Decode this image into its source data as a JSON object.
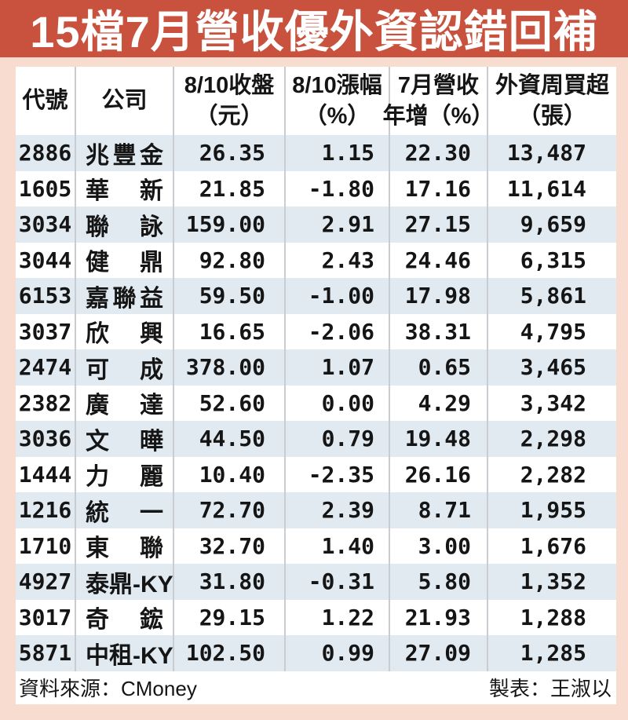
{
  "title": {
    "text": "15檔7月營收優外資認錯回補"
  },
  "colors": {
    "background": "#f8dcd0",
    "title_bar": "#c8523e",
    "title_text": "#ffffff",
    "row_stripe": "#e1eaf0",
    "divider": "#c9cdd1",
    "text": "#151515"
  },
  "table": {
    "headers": [
      {
        "name": "code",
        "line1": "代號",
        "line2": ""
      },
      {
        "name": "company",
        "line1": "公司",
        "line2": ""
      },
      {
        "name": "close",
        "line1": "8/10收盤",
        "line2": "（元）"
      },
      {
        "name": "change",
        "line1": "8/10漲幅",
        "line2": "（%）"
      },
      {
        "name": "revenue",
        "line1": "7月營收",
        "line2": "年增（%）"
      },
      {
        "name": "buy",
        "line1": "外資周買超",
        "line2": "（張）"
      }
    ],
    "rows": [
      {
        "code": "2886",
        "name": "兆豐金",
        "close": "26.35",
        "change": "1.15",
        "revenue": "22.30",
        "buy": "13,487"
      },
      {
        "code": "1605",
        "name": "華新",
        "close": "21.85",
        "change": "-1.80",
        "revenue": "17.16",
        "buy": "11,614"
      },
      {
        "code": "3034",
        "name": "聯詠",
        "close": "159.00",
        "change": "2.91",
        "revenue": "27.15",
        "buy": "9,659"
      },
      {
        "code": "3044",
        "name": "健鼎",
        "close": "92.80",
        "change": "2.43",
        "revenue": "24.46",
        "buy": "6,315"
      },
      {
        "code": "6153",
        "name": "嘉聯益",
        "close": "59.50",
        "change": "-1.00",
        "revenue": "17.98",
        "buy": "5,861"
      },
      {
        "code": "3037",
        "name": "欣興",
        "close": "16.65",
        "change": "-2.06",
        "revenue": "38.31",
        "buy": "4,795"
      },
      {
        "code": "2474",
        "name": "可成",
        "close": "378.00",
        "change": "1.07",
        "revenue": "0.65",
        "buy": "3,465"
      },
      {
        "code": "2382",
        "name": "廣達",
        "close": "52.60",
        "change": "0.00",
        "revenue": "4.29",
        "buy": "3,342"
      },
      {
        "code": "3036",
        "name": "文曄",
        "close": "44.50",
        "change": "0.79",
        "revenue": "19.48",
        "buy": "2,298"
      },
      {
        "code": "1444",
        "name": "力麗",
        "close": "10.40",
        "change": "-2.35",
        "revenue": "26.16",
        "buy": "2,282"
      },
      {
        "code": "1216",
        "name": "統一",
        "close": "72.70",
        "change": "2.39",
        "revenue": "8.71",
        "buy": "1,955"
      },
      {
        "code": "1710",
        "name": "東聯",
        "close": "32.70",
        "change": "1.40",
        "revenue": "3.00",
        "buy": "1,676"
      },
      {
        "code": "4927",
        "name": "泰鼎-KY",
        "close": "31.80",
        "change": "-0.31",
        "revenue": "5.80",
        "buy": "1,352"
      },
      {
        "code": "3017",
        "name": "奇鋐",
        "close": "29.15",
        "change": "1.22",
        "revenue": "21.93",
        "buy": "1,288"
      },
      {
        "code": "5871",
        "name": "中租-KY",
        "close": "102.50",
        "change": "0.99",
        "revenue": "27.09",
        "buy": "1,285"
      }
    ]
  },
  "footer": {
    "source": "資料來源：CMoney",
    "credit": "製表：王淑以"
  },
  "chart_data": {
    "type": "table",
    "title": "15檔7月營收優外資認錯回補",
    "columns": [
      "代號",
      "公司",
      "8/10收盤（元）",
      "8/10漲幅（%）",
      "7月營收年增（%）",
      "外資周買超（張）"
    ],
    "rows": [
      [
        "2886",
        "兆豐金",
        26.35,
        1.15,
        22.3,
        13487
      ],
      [
        "1605",
        "華新",
        21.85,
        -1.8,
        17.16,
        11614
      ],
      [
        "3034",
        "聯詠",
        159.0,
        2.91,
        27.15,
        9659
      ],
      [
        "3044",
        "健鼎",
        92.8,
        2.43,
        24.46,
        6315
      ],
      [
        "6153",
        "嘉聯益",
        59.5,
        -1.0,
        17.98,
        5861
      ],
      [
        "3037",
        "欣興",
        16.65,
        -2.06,
        38.31,
        4795
      ],
      [
        "2474",
        "可成",
        378.0,
        1.07,
        0.65,
        3465
      ],
      [
        "2382",
        "廣達",
        52.6,
        0.0,
        4.29,
        3342
      ],
      [
        "3036",
        "文曄",
        44.5,
        0.79,
        19.48,
        2298
      ],
      [
        "1444",
        "力麗",
        10.4,
        -2.35,
        26.16,
        2282
      ],
      [
        "1216",
        "統一",
        72.7,
        2.39,
        8.71,
        1955
      ],
      [
        "1710",
        "東聯",
        32.7,
        1.4,
        3.0,
        1676
      ],
      [
        "4927",
        "泰鼎-KY",
        31.8,
        -0.31,
        5.8,
        1352
      ],
      [
        "3017",
        "奇鋐",
        29.15,
        1.22,
        21.93,
        1288
      ],
      [
        "5871",
        "中租-KY",
        102.5,
        0.99,
        27.09,
        1285
      ]
    ],
    "source": "CMoney",
    "credit": "王淑以"
  }
}
